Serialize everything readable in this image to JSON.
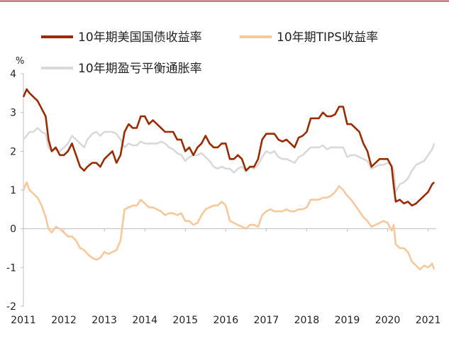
{
  "chart_data": {
    "type": "line",
    "title": "",
    "ylabel": "%",
    "xlabel": "",
    "ylim": [
      -2,
      4
    ],
    "xlim": [
      2011.0,
      2021.2
    ],
    "y_ticks": [
      "4",
      "3",
      "2",
      "1",
      "0",
      "-1",
      "-2"
    ],
    "x_ticks": [
      "2011",
      "2012",
      "2013",
      "2014",
      "2015",
      "2016",
      "2017",
      "2018",
      "2019",
      "2020",
      "2021"
    ],
    "legend": [
      "10年期美国国债收益率",
      "10年期TIPS收益率",
      "10年期盈亏平衡通胀率"
    ],
    "series": [
      {
        "name": "10年期美国国债收益率",
        "color": "#9c2a00",
        "x": [
          2011.0,
          2011.08,
          2011.15,
          2011.25,
          2011.35,
          2011.45,
          2011.55,
          2011.62,
          2011.7,
          2011.8,
          2011.9,
          2012.0,
          2012.1,
          2012.2,
          2012.3,
          2012.4,
          2012.5,
          2012.58,
          2012.7,
          2012.8,
          2012.9,
          2013.0,
          2013.1,
          2013.2,
          2013.3,
          2013.4,
          2013.5,
          2013.6,
          2013.7,
          2013.8,
          2013.9,
          2014.0,
          2014.1,
          2014.2,
          2014.3,
          2014.4,
          2014.5,
          2014.6,
          2014.7,
          2014.8,
          2014.9,
          2015.0,
          2015.1,
          2015.2,
          2015.3,
          2015.4,
          2015.5,
          2015.6,
          2015.7,
          2015.8,
          2015.9,
          2016.0,
          2016.1,
          2016.2,
          2016.3,
          2016.4,
          2016.5,
          2016.6,
          2016.7,
          2016.8,
          2016.9,
          2017.0,
          2017.1,
          2017.2,
          2017.3,
          2017.4,
          2017.5,
          2017.6,
          2017.7,
          2017.8,
          2017.9,
          2018.0,
          2018.1,
          2018.2,
          2018.3,
          2018.4,
          2018.5,
          2018.6,
          2018.7,
          2018.8,
          2018.9,
          2019.0,
          2019.1,
          2019.2,
          2019.3,
          2019.4,
          2019.5,
          2019.6,
          2019.7,
          2019.8,
          2019.9,
          2020.0,
          2020.1,
          2020.15,
          2020.2,
          2020.3,
          2020.4,
          2020.5,
          2020.6,
          2020.7,
          2020.8,
          2020.9,
          2021.0,
          2021.1,
          2021.15
        ],
        "values": [
          3.4,
          3.6,
          3.5,
          3.4,
          3.3,
          3.1,
          2.9,
          2.3,
          2.0,
          2.1,
          1.9,
          1.9,
          2.0,
          2.2,
          1.9,
          1.6,
          1.5,
          1.6,
          1.7,
          1.7,
          1.6,
          1.8,
          1.9,
          2.0,
          1.7,
          1.9,
          2.5,
          2.7,
          2.6,
          2.6,
          2.9,
          2.9,
          2.7,
          2.8,
          2.7,
          2.6,
          2.5,
          2.5,
          2.5,
          2.3,
          2.3,
          2.0,
          2.1,
          1.9,
          2.1,
          2.2,
          2.4,
          2.2,
          2.1,
          2.1,
          2.2,
          2.2,
          1.8,
          1.8,
          1.9,
          1.8,
          1.5,
          1.6,
          1.6,
          1.8,
          2.3,
          2.45,
          2.45,
          2.45,
          2.3,
          2.25,
          2.3,
          2.2,
          2.1,
          2.35,
          2.4,
          2.5,
          2.85,
          2.85,
          2.85,
          3.0,
          2.9,
          2.9,
          2.95,
          3.15,
          3.15,
          2.7,
          2.7,
          2.6,
          2.5,
          2.2,
          2.0,
          1.6,
          1.7,
          1.8,
          1.8,
          1.8,
          1.6,
          1.1,
          0.7,
          0.75,
          0.65,
          0.7,
          0.6,
          0.65,
          0.75,
          0.85,
          0.95,
          1.15,
          1.2
        ]
      },
      {
        "name": "10年期TIPS收益率",
        "color": "#f8c79a",
        "x": [
          2011.0,
          2011.08,
          2011.15,
          2011.25,
          2011.35,
          2011.45,
          2011.55,
          2011.62,
          2011.7,
          2011.8,
          2011.9,
          2012.0,
          2012.1,
          2012.2,
          2012.3,
          2012.4,
          2012.5,
          2012.58,
          2012.7,
          2012.8,
          2012.9,
          2013.0,
          2013.1,
          2013.2,
          2013.3,
          2013.4,
          2013.5,
          2013.6,
          2013.7,
          2013.8,
          2013.9,
          2014.0,
          2014.1,
          2014.2,
          2014.3,
          2014.4,
          2014.5,
          2014.6,
          2014.7,
          2014.8,
          2014.9,
          2015.0,
          2015.1,
          2015.2,
          2015.3,
          2015.4,
          2015.5,
          2015.6,
          2015.7,
          2015.8,
          2015.9,
          2016.0,
          2016.1,
          2016.2,
          2016.3,
          2016.4,
          2016.5,
          2016.6,
          2016.7,
          2016.8,
          2016.9,
          2017.0,
          2017.1,
          2017.2,
          2017.3,
          2017.4,
          2017.5,
          2017.6,
          2017.7,
          2017.8,
          2017.9,
          2018.0,
          2018.1,
          2018.2,
          2018.3,
          2018.4,
          2018.5,
          2018.6,
          2018.7,
          2018.8,
          2018.9,
          2019.0,
          2019.1,
          2019.2,
          2019.3,
          2019.4,
          2019.5,
          2019.6,
          2019.7,
          2019.8,
          2019.9,
          2020.0,
          2020.1,
          2020.15,
          2020.2,
          2020.3,
          2020.4,
          2020.5,
          2020.6,
          2020.7,
          2020.8,
          2020.9,
          2021.0,
          2021.1,
          2021.15
        ],
        "values": [
          1.0,
          1.2,
          1.0,
          0.9,
          0.8,
          0.6,
          0.3,
          0.0,
          -0.1,
          0.05,
          0.0,
          -0.1,
          -0.2,
          -0.2,
          -0.3,
          -0.5,
          -0.55,
          -0.65,
          -0.75,
          -0.8,
          -0.75,
          -0.6,
          -0.65,
          -0.6,
          -0.55,
          -0.3,
          0.5,
          0.55,
          0.6,
          0.6,
          0.75,
          0.65,
          0.55,
          0.55,
          0.5,
          0.45,
          0.35,
          0.4,
          0.4,
          0.35,
          0.4,
          0.2,
          0.2,
          0.1,
          0.15,
          0.35,
          0.5,
          0.55,
          0.6,
          0.6,
          0.7,
          0.6,
          0.2,
          0.15,
          0.1,
          0.05,
          0.0,
          0.1,
          0.1,
          0.05,
          0.35,
          0.45,
          0.5,
          0.45,
          0.45,
          0.45,
          0.5,
          0.45,
          0.45,
          0.5,
          0.5,
          0.55,
          0.75,
          0.75,
          0.75,
          0.8,
          0.8,
          0.85,
          0.95,
          1.1,
          1.0,
          0.85,
          0.75,
          0.6,
          0.45,
          0.3,
          0.2,
          0.05,
          0.1,
          0.15,
          0.2,
          0.15,
          -0.05,
          0.1,
          -0.4,
          -0.5,
          -0.5,
          -0.6,
          -0.85,
          -0.95,
          -1.05,
          -0.95,
          -1.0,
          -0.9,
          -1.05
        ]
      },
      {
        "name": "10年期盈亏平衡通胀率",
        "color": "#d9d9d9",
        "x": [
          2011.0,
          2011.08,
          2011.15,
          2011.25,
          2011.35,
          2011.45,
          2011.55,
          2011.62,
          2011.7,
          2011.8,
          2011.9,
          2012.0,
          2012.1,
          2012.2,
          2012.3,
          2012.4,
          2012.5,
          2012.58,
          2012.7,
          2012.8,
          2012.9,
          2013.0,
          2013.1,
          2013.2,
          2013.3,
          2013.4,
          2013.5,
          2013.6,
          2013.7,
          2013.8,
          2013.9,
          2014.0,
          2014.1,
          2014.2,
          2014.3,
          2014.4,
          2014.5,
          2014.6,
          2014.7,
          2014.8,
          2014.9,
          2015.0,
          2015.1,
          2015.2,
          2015.3,
          2015.4,
          2015.5,
          2015.6,
          2015.7,
          2015.8,
          2015.9,
          2016.0,
          2016.1,
          2016.2,
          2016.3,
          2016.4,
          2016.5,
          2016.6,
          2016.7,
          2016.8,
          2016.9,
          2017.0,
          2017.1,
          2017.2,
          2017.3,
          2017.4,
          2017.5,
          2017.6,
          2017.7,
          2017.8,
          2017.9,
          2018.0,
          2018.1,
          2018.2,
          2018.3,
          2018.4,
          2018.5,
          2018.6,
          2018.7,
          2018.8,
          2018.9,
          2019.0,
          2019.1,
          2019.2,
          2019.3,
          2019.4,
          2019.5,
          2019.6,
          2019.7,
          2019.8,
          2019.9,
          2020.0,
          2020.1,
          2020.15,
          2020.2,
          2020.3,
          2020.4,
          2020.5,
          2020.6,
          2020.7,
          2020.8,
          2020.9,
          2021.0,
          2021.1,
          2021.15
        ],
        "values": [
          2.3,
          2.4,
          2.5,
          2.5,
          2.6,
          2.5,
          2.45,
          2.1,
          2.0,
          2.05,
          2.0,
          2.1,
          2.2,
          2.4,
          2.3,
          2.2,
          2.1,
          2.3,
          2.45,
          2.5,
          2.4,
          2.5,
          2.5,
          2.5,
          2.45,
          2.3,
          2.1,
          2.2,
          2.15,
          2.15,
          2.25,
          2.2,
          2.2,
          2.2,
          2.2,
          2.25,
          2.2,
          2.1,
          2.05,
          1.95,
          1.9,
          1.75,
          1.85,
          1.9,
          1.9,
          1.95,
          1.85,
          1.75,
          1.6,
          1.55,
          1.6,
          1.55,
          1.55,
          1.45,
          1.55,
          1.6,
          1.5,
          1.6,
          1.55,
          1.65,
          1.85,
          2.0,
          1.95,
          2.0,
          1.85,
          1.8,
          1.8,
          1.75,
          1.7,
          1.85,
          1.9,
          2.0,
          2.1,
          2.1,
          2.1,
          2.15,
          2.05,
          2.1,
          2.1,
          2.1,
          2.1,
          1.85,
          1.9,
          1.9,
          1.85,
          1.8,
          1.75,
          1.55,
          1.6,
          1.65,
          1.65,
          1.7,
          1.65,
          1.5,
          0.95,
          1.15,
          1.2,
          1.3,
          1.5,
          1.65,
          1.7,
          1.75,
          1.9,
          2.05,
          2.2
        ]
      }
    ]
  }
}
